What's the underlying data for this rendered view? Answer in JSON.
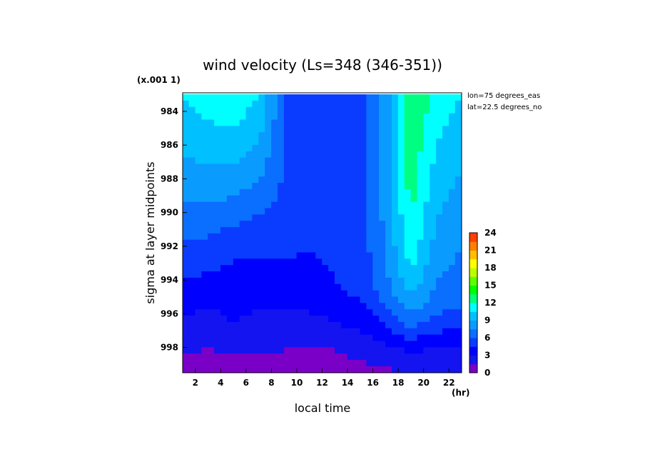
{
  "chart_data": {
    "type": "heatmap",
    "title": "wind velocity (Ls=348 (346-351))",
    "xlabel": "local time",
    "ylabel": "sigma at layer midpoints",
    "x_unit": "(hr)",
    "y_scale_note": "(x.001 1)",
    "annotations": [
      "lon=75 degrees_eas",
      "lat=22.5 degrees_no"
    ],
    "x_ticks": [
      "2",
      "4",
      "6",
      "8",
      "10",
      "12",
      "14",
      "16",
      "18",
      "20",
      "22"
    ],
    "y_ticks": [
      "984",
      "986",
      "988",
      "990",
      "992",
      "994",
      "996",
      "998"
    ],
    "colorbar_ticks": [
      "24",
      "21",
      "18",
      "15",
      "12",
      "9",
      "6",
      "3",
      "0"
    ],
    "xlim": [
      1,
      23
    ],
    "ylim": [
      999.5,
      982.9
    ],
    "x": [
      1,
      3,
      5,
      7,
      9,
      11,
      13,
      15,
      17,
      19,
      21,
      23
    ],
    "y": [
      983.0,
      984.5,
      986.0,
      987.5,
      989.0,
      990.5,
      992.0,
      993.5,
      995.0,
      996.5,
      998.0,
      999.5
    ],
    "z": [
      [
        10.5,
        11.0,
        11.2,
        10.5,
        6.0,
        6.0,
        5.5,
        5.5,
        8.0,
        13.5,
        11.5,
        10.5
      ],
      [
        10.0,
        10.5,
        10.8,
        10.0,
        6.0,
        5.8,
        5.5,
        5.5,
        8.0,
        13.5,
        11.0,
        10.0
      ],
      [
        9.3,
        9.8,
        10.0,
        9.0,
        5.8,
        5.6,
        5.4,
        5.5,
        8.0,
        13.0,
        10.5,
        9.5
      ],
      [
        8.6,
        8.8,
        8.8,
        8.0,
        5.8,
        5.5,
        5.3,
        5.5,
        8.0,
        12.8,
        10.0,
        9.0
      ],
      [
        7.8,
        7.8,
        7.6,
        6.8,
        5.8,
        5.3,
        5.2,
        5.5,
        8.0,
        12.5,
        9.5,
        8.5
      ],
      [
        6.8,
        6.6,
        6.3,
        5.8,
        5.5,
        5.0,
        5.0,
        5.3,
        7.8,
        12.0,
        9.0,
        8.0
      ],
      [
        5.8,
        5.6,
        5.0,
        4.8,
        5.0,
        4.6,
        4.8,
        5.2,
        7.6,
        11.5,
        8.5,
        7.5
      ],
      [
        4.8,
        4.6,
        4.2,
        4.0,
        4.2,
        4.0,
        4.6,
        5.0,
        7.2,
        10.5,
        7.8,
        7.0
      ],
      [
        3.8,
        3.4,
        3.8,
        3.4,
        3.3,
        3.5,
        4.2,
        4.6,
        6.5,
        9.0,
        7.0,
        6.5
      ],
      [
        2.8,
        2.3,
        3.0,
        2.6,
        2.5,
        2.6,
        3.0,
        3.5,
        4.8,
        6.8,
        5.5,
        5.0
      ],
      [
        1.8,
        1.5,
        1.8,
        1.6,
        1.6,
        1.5,
        1.6,
        2.0,
        2.6,
        3.5,
        3.0,
        3.0
      ],
      [
        0.8,
        0.8,
        0.9,
        0.8,
        0.8,
        0.8,
        0.8,
        1.0,
        1.2,
        1.5,
        1.4,
        1.4
      ]
    ],
    "color_levels": [
      0,
      1.5,
      3,
      4.5,
      6,
      7.5,
      9,
      10.5,
      12,
      13.5,
      15,
      16.5,
      18,
      19.5,
      21,
      22.5,
      24
    ],
    "colors": [
      "#7a00c8",
      "#1414f0",
      "#0000ff",
      "#0a3cff",
      "#0a6eff",
      "#0a9bff",
      "#00c0ff",
      "#00ffff",
      "#00ff80",
      "#00ff00",
      "#60ff00",
      "#c0ff00",
      "#ffff00",
      "#ffc000",
      "#ff8000",
      "#ff4000",
      "#ff0000"
    ]
  }
}
